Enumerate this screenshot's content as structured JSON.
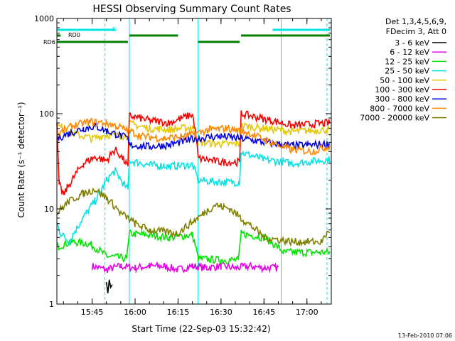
{
  "chart_data": {
    "type": "line",
    "title": "HESSI Observing Summary Count Rates",
    "xlabel": "Start Time (22-Sep-03 15:32:42)",
    "ylabel": "Count Rate (s⁻¹ detector⁻¹)",
    "yscale": "log",
    "ylim": [
      1,
      1000
    ],
    "xlim": [
      "15:32:42",
      "17:08:30"
    ],
    "x_ticks": [
      "15:45",
      "16:00",
      "16:15",
      "16:30",
      "16:45",
      "17:00"
    ],
    "y_ticks": [
      "1",
      "10",
      "100",
      "1000"
    ],
    "legend_header": [
      "Det 1,3,4,5,6,9,",
      "FDecim 3, Att 0"
    ],
    "legend_position": "right",
    "footer_date": "13-Feb-2010 07:06",
    "flags": [
      {
        "label": "N",
        "color": "#00e5e5",
        "intervals": [
          [
            "15:32:42",
            "15:53:00"
          ],
          [
            "16:48:00",
            "17:08:00"
          ]
        ]
      },
      {
        "label": "RD0",
        "color": "#007f00",
        "intervals": [
          [
            "15:32:42",
            "15:34:00"
          ],
          [
            "15:58:00",
            "16:15:00"
          ],
          [
            "16:37:00",
            "17:08:00"
          ]
        ]
      },
      {
        "label": "RD6",
        "color": "#007f00",
        "intervals": [
          [
            "15:32:42",
            "15:57:30"
          ],
          [
            "16:22:00",
            "16:36:30"
          ]
        ]
      }
    ],
    "vlines_solid": [
      "15:32:42",
      "15:58:00",
      "16:22:00",
      "16:51:00"
    ],
    "vlines_dashed": [
      "15:49:30",
      "17:07:00"
    ],
    "series": [
      {
        "name": "3 - 6 keV",
        "color": "#000000",
        "x": [
          "15:50:00",
          "15:50:30",
          "15:51:00",
          "15:51:30",
          "15:52:00"
        ],
        "y": [
          1.7,
          1.3,
          1.8,
          1.5,
          1.6
        ]
      },
      {
        "name": "6 - 12 keV",
        "color": "#e600e6",
        "x": [
          "15:45:00",
          "15:50:00",
          "15:55:00",
          "16:00:00",
          "16:05:00",
          "16:10:00",
          "16:15:00",
          "16:20:00",
          "16:25:00",
          "16:30:00",
          "16:35:00",
          "16:40:00",
          "16:45:00",
          "16:50:00"
        ],
        "y": [
          2.5,
          2.3,
          2.5,
          2.4,
          2.5,
          2.5,
          2.3,
          2.5,
          2.4,
          2.5,
          2.4,
          2.5,
          2.4,
          2.4
        ]
      },
      {
        "name": "12 - 25 keV",
        "color": "#00e600",
        "x": [
          "15:32:42",
          "15:38:00",
          "15:44:00",
          "15:50:00",
          "15:57:00",
          "15:58:00",
          "16:05:00",
          "16:12:00",
          "16:20:00",
          "16:22:00",
          "16:30:00",
          "16:36:00",
          "16:37:00",
          "16:45:00",
          "16:52:00",
          "17:00:00",
          "17:08:00"
        ],
        "y": [
          4.0,
          4.5,
          4.3,
          3.2,
          3.0,
          5.5,
          5.3,
          5.0,
          5.3,
          3.0,
          2.9,
          2.9,
          5.5,
          5.0,
          3.5,
          3.5,
          3.5
        ]
      },
      {
        "name": "25 - 50 keV",
        "color": "#00e5e5",
        "x": [
          "15:32:42",
          "15:34:00",
          "15:37:00",
          "15:40:00",
          "15:43:00",
          "15:46:00",
          "15:48:00",
          "15:50:00",
          "15:53:00",
          "15:56:00",
          "15:57:30",
          "15:58:00",
          "16:05:00",
          "16:12:00",
          "16:20:00",
          "16:22:00",
          "16:30:00",
          "16:36:30",
          "16:37:00",
          "16:45:00",
          "16:55:00",
          "17:08:00"
        ],
        "y": [
          7.0,
          5.5,
          4.5,
          6.5,
          9.0,
          12.0,
          15.0,
          20.0,
          25.0,
          18.0,
          16.0,
          32.0,
          29.0,
          28.0,
          29.0,
          20.0,
          19.0,
          19.0,
          39.0,
          33.0,
          30.0,
          33.0
        ]
      },
      {
        "name": "50 - 100 keV",
        "color": "#e6c800",
        "x": [
          "15:32:42",
          "15:38:00",
          "15:45:00",
          "15:50:00",
          "15:57:30",
          "15:58:00",
          "16:05:00",
          "16:12:00",
          "16:20:00",
          "16:22:00",
          "16:30:00",
          "16:36:30",
          "16:37:00",
          "16:45:00",
          "16:55:00",
          "17:08:00"
        ],
        "y": [
          75.0,
          62.0,
          55.0,
          60.0,
          58.0,
          78.0,
          70.0,
          68.0,
          72.0,
          50.0,
          48.0,
          48.0,
          75.0,
          70.0,
          65.0,
          68.0
        ]
      },
      {
        "name": "100 - 300 keV",
        "color": "#ff0000",
        "x": [
          "15:32:42",
          "15:33:30",
          "15:35:00",
          "15:38:00",
          "15:42:00",
          "15:46:00",
          "15:50:00",
          "15:53:00",
          "15:57:30",
          "15:58:00",
          "16:05:00",
          "16:12:00",
          "16:20:00",
          "16:22:00",
          "16:30:00",
          "16:36:30",
          "16:37:00",
          "16:45:00",
          "16:55:00",
          "17:08:00"
        ],
        "y": [
          80.0,
          18.0,
          14.0,
          20.0,
          30.0,
          35.0,
          32.0,
          42.0,
          28.0,
          95.0,
          85.0,
          80.0,
          98.0,
          34.0,
          31.0,
          31.0,
          100.0,
          88.0,
          75.0,
          80.0
        ]
      },
      {
        "name": "300 - 800 keV",
        "color": "#0000e6",
        "x": [
          "15:32:42",
          "15:37:00",
          "15:42:00",
          "15:46:00",
          "15:50:00",
          "15:57:30",
          "15:58:00",
          "16:05:00",
          "16:12:00",
          "16:20:00",
          "16:22:00",
          "16:30:00",
          "16:36:30",
          "16:37:00",
          "16:45:00",
          "16:55:00",
          "17:08:00"
        ],
        "y": [
          55.0,
          62.0,
          70.0,
          74.0,
          66.0,
          55.0,
          47.0,
          45.0,
          47.0,
          54.0,
          55.0,
          58.0,
          55.0,
          55.0,
          50.0,
          46.0,
          48.0
        ]
      },
      {
        "name": "800 - 7000 keV",
        "color": "#ff8800",
        "x": [
          "15:32:42",
          "15:38:00",
          "15:44:00",
          "15:50:00",
          "15:56:00",
          "16:02:00",
          "16:10:00",
          "16:18:00",
          "16:26:00",
          "16:32:00",
          "16:38:00",
          "16:46:00",
          "16:54:00",
          "17:02:00",
          "17:08:00"
        ],
        "y": [
          60.0,
          74.0,
          82.0,
          80.0,
          70.0,
          58.0,
          55.0,
          58.0,
          68.0,
          70.0,
          65.0,
          52.0,
          42.0,
          40.0,
          46.0
        ]
      },
      {
        "name": "7000 - 20000 keV",
        "color": "#808000",
        "x": [
          "15:32:42",
          "15:37:00",
          "15:42:00",
          "15:46:00",
          "15:50:00",
          "15:55:00",
          "16:00:00",
          "16:05:00",
          "16:15:00",
          "16:22:00",
          "16:28:00",
          "16:33:00",
          "16:38:00",
          "16:45:00",
          "16:55:00",
          "17:05:00",
          "17:08:00"
        ],
        "y": [
          9.0,
          12.0,
          14.5,
          16.0,
          13.0,
          9.0,
          7.0,
          6.0,
          5.5,
          8.0,
          11.0,
          10.0,
          7.5,
          5.0,
          4.5,
          4.5,
          6.0
        ]
      }
    ]
  }
}
